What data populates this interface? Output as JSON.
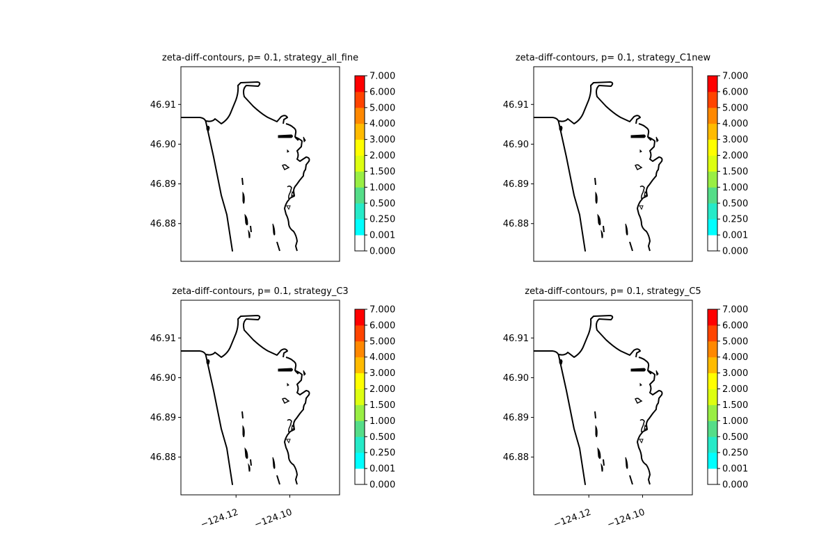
{
  "figure": {
    "panels": [
      {
        "title": "zeta-diff-contours, p= 0.1, strategy_all_fine",
        "show_xticks": false
      },
      {
        "title": "zeta-diff-contours, p= 0.1, strategy_C1new",
        "show_xticks": false
      },
      {
        "title": "zeta-diff-contours, p= 0.1, strategy_C3",
        "show_xticks": true
      },
      {
        "title": "zeta-diff-contours, p= 0.1, strategy_C5",
        "show_xticks": true
      }
    ]
  },
  "chart_data": {
    "type": "contour-map",
    "panel_count": 4,
    "xlim": [
      -124.1405,
      -124.0815
    ],
    "ylim": [
      46.8705,
      46.9195
    ],
    "x_ticks": [
      -124.12,
      -124.1
    ],
    "x_tick_labels": [
      "−124.12",
      "−124.10"
    ],
    "y_ticks": [
      46.91,
      46.9,
      46.89,
      46.88
    ],
    "y_tick_labels": [
      "46.91",
      "46.90",
      "46.89",
      "46.88"
    ],
    "colorbar": {
      "levels": [
        0.0,
        0.001,
        0.25,
        0.5,
        1.0,
        1.5,
        2.0,
        3.0,
        4.0,
        5.0,
        6.0,
        7.0
      ],
      "labels": [
        "0.000",
        "0.001",
        "0.250",
        "0.500",
        "1.000",
        "1.500",
        "2.000",
        "3.000",
        "4.000",
        "5.000",
        "6.000",
        "7.000"
      ],
      "colors": [
        "#ffffff",
        "#00ffff",
        "#26eac8",
        "#55dd88",
        "#99ee44",
        "#ddff11",
        "#ffff00",
        "#ffbb00",
        "#ff8800",
        "#ff4400",
        "#ff0000"
      ]
    },
    "shoreline_color": "#000000"
  }
}
